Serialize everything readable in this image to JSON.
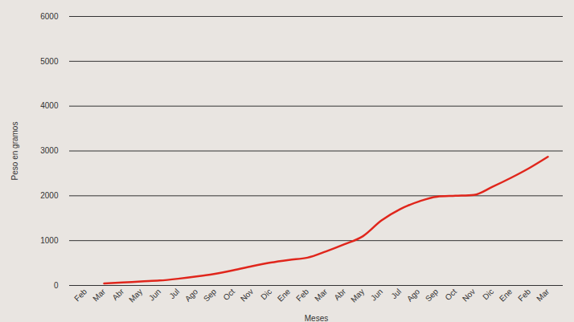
{
  "chart_data": {
    "type": "line",
    "x_label": "Meses",
    "y_label": "Peso en gramos",
    "categories": [
      "Feb",
      "Mar",
      "Abr",
      "May",
      "Jun",
      "Jul",
      "Ago",
      "Sep",
      "Oct",
      "Nov",
      "Dic",
      "Ene",
      "Feb",
      "Mar",
      "Abr",
      "May",
      "Jun",
      "Jul",
      "Ago",
      "Sep",
      "Oct",
      "Nov",
      "Dic",
      "Ene",
      "Feb",
      "Mar"
    ],
    "values": [
      null,
      45,
      65,
      90,
      110,
      150,
      200,
      260,
      340,
      430,
      510,
      570,
      620,
      760,
      920,
      1100,
      1450,
      1700,
      1870,
      1980,
      2000,
      2020,
      2200,
      2400,
      2620,
      2870
    ],
    "color": "#e0261c",
    "ylim": [
      0,
      6000
    ],
    "yticks": [
      0,
      1000,
      2000,
      3000,
      4000,
      5000,
      6000
    ],
    "grid": true
  }
}
